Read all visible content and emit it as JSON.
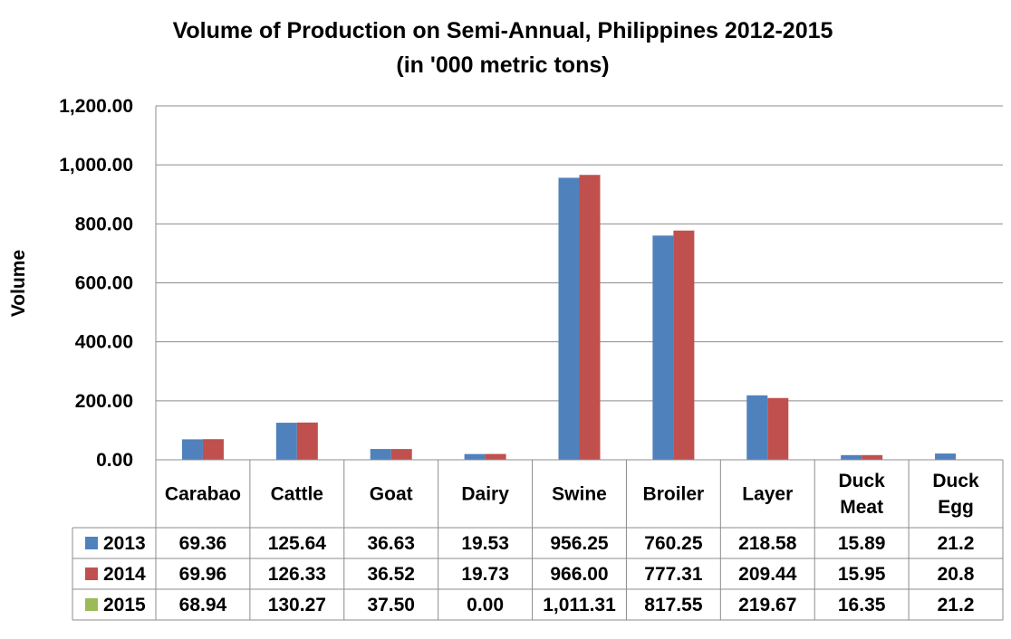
{
  "chart_data": {
    "type": "bar",
    "title": "Volume of Production on Semi-Annual, Philippines 2012-2015",
    "subtitle": "(in '000 metric tons)",
    "ylabel": "Volume",
    "xlabel": "",
    "ylim": [
      0,
      1200
    ],
    "yticks": [
      0,
      200,
      400,
      600,
      800,
      1000,
      1200
    ],
    "ytick_labels": [
      "0.00",
      "200.00",
      "400.00",
      "600.00",
      "800.00",
      "1,000.00",
      "1,200.00"
    ],
    "grid": true,
    "legend": "data table",
    "categories": [
      [
        "Carabao"
      ],
      [
        "Cattle"
      ],
      [
        "Goat"
      ],
      [
        "Dairy"
      ],
      [
        "Swine"
      ],
      [
        "Broiler"
      ],
      [
        "Layer"
      ],
      [
        "Duck",
        "Meat"
      ],
      [
        "Duck",
        "Egg"
      ]
    ],
    "series": [
      {
        "name": "2013",
        "color": "#4F81BD",
        "values": [
          69.36,
          125.64,
          36.63,
          19.53,
          956.25,
          760.25,
          218.58,
          15.89,
          21.2
        ],
        "labels": [
          "69.36",
          "125.64",
          "36.63",
          "19.53",
          "956.25",
          "760.25",
          "218.58",
          "15.89",
          "21.2"
        ],
        "bars_shown": [
          true,
          true,
          true,
          true,
          true,
          true,
          true,
          true,
          true
        ]
      },
      {
        "name": "2014",
        "color": "#C0504D",
        "values": [
          69.96,
          126.33,
          36.52,
          19.73,
          966.0,
          777.31,
          209.44,
          15.95,
          20.8
        ],
        "labels": [
          "69.96",
          "126.33",
          "36.52",
          "19.73",
          "966.00",
          "777.31",
          "209.44",
          "15.95",
          "20.8"
        ],
        "bars_shown": [
          true,
          true,
          true,
          true,
          true,
          true,
          true,
          true,
          false
        ]
      },
      {
        "name": "2015",
        "color": "#9BBB59",
        "values": [
          68.94,
          130.27,
          37.5,
          0.0,
          1011.31,
          817.55,
          219.67,
          16.35,
          21.2
        ],
        "labels": [
          "68.94",
          "130.27",
          "37.50",
          "0.00",
          "1,011.31",
          "817.55",
          "219.67",
          "16.35",
          "21.2"
        ],
        "bars_shown": [
          false,
          false,
          false,
          false,
          false,
          false,
          false,
          false,
          false
        ]
      }
    ]
  }
}
